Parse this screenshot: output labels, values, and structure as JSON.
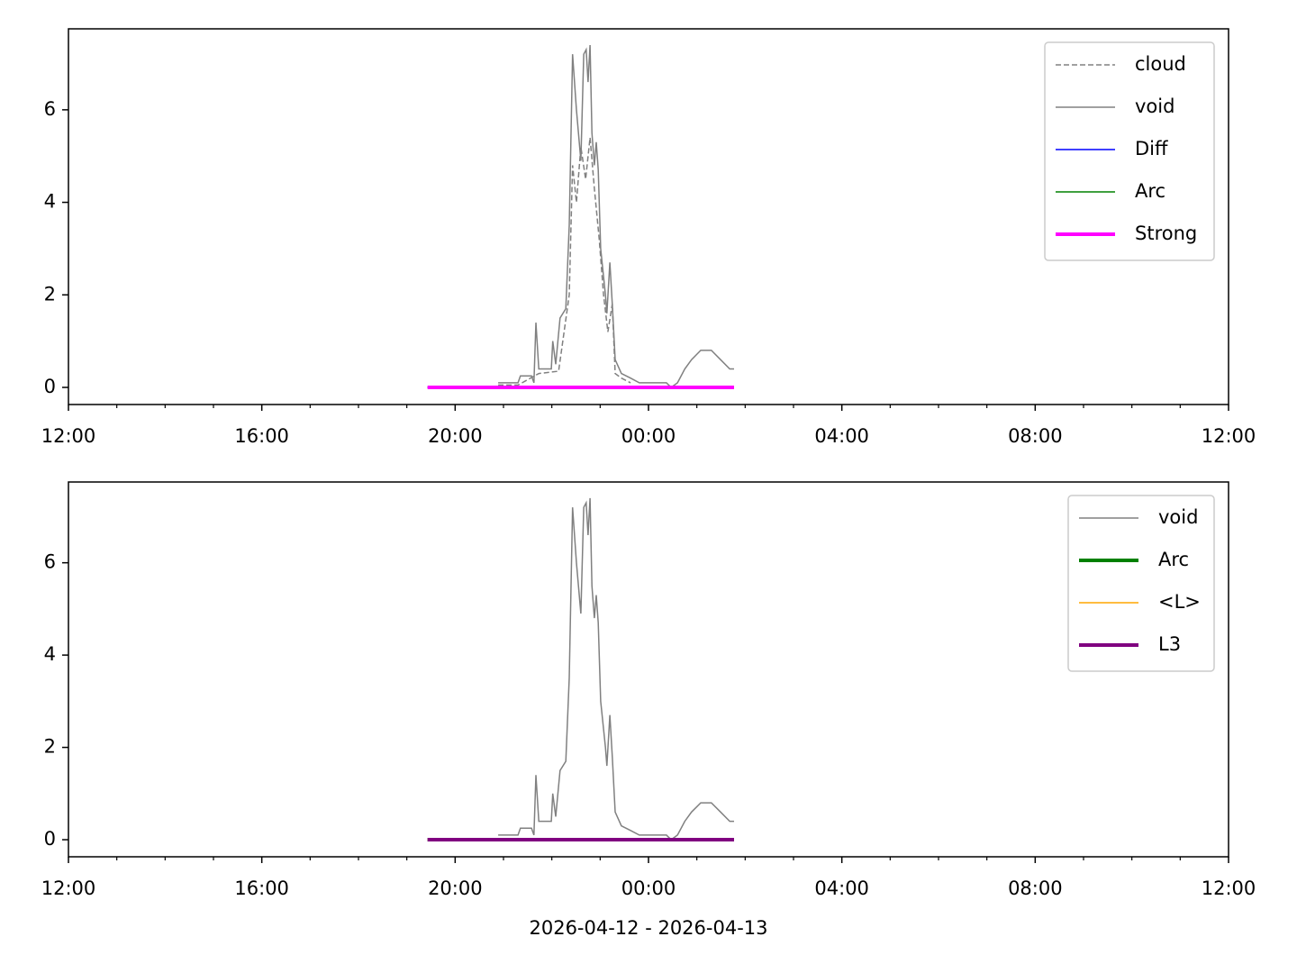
{
  "chart_data": [
    {
      "type": "line",
      "xlim": [
        12,
        36
      ],
      "xticks": [
        {
          "value": 12,
          "label": "12:00"
        },
        {
          "value": 16,
          "label": "16:00"
        },
        {
          "value": 20,
          "label": "20:00"
        },
        {
          "value": 24,
          "label": "00:00"
        },
        {
          "value": 28,
          "label": "04:00"
        },
        {
          "value": 32,
          "label": "08:00"
        },
        {
          "value": 36,
          "label": "12:00"
        }
      ],
      "xminorticks": [
        13,
        14,
        15,
        17,
        18,
        19,
        21,
        22,
        23,
        25,
        26,
        27,
        29,
        30,
        31,
        33,
        34,
        35
      ],
      "ylim": [
        -0.37,
        7.75
      ],
      "yticks": [
        0,
        2,
        4,
        6
      ],
      "legend": "upper right",
      "series": [
        {
          "name": "cloud",
          "color": "#808080",
          "linestyle": "dashed",
          "linewidth": 1.5,
          "x": [
            20.89,
            21.3,
            21.73,
            22.14,
            22.36,
            22.43,
            22.51,
            22.6,
            22.7,
            22.79,
            22.88,
            22.98,
            23.07,
            23.16,
            23.25,
            23.31,
            23.44,
            23.63
          ],
          "values": [
            0.05,
            0.05,
            0.3,
            0.35,
            2.0,
            4.8,
            4.0,
            5.2,
            4.5,
            5.4,
            4.3,
            3.2,
            2.0,
            1.2,
            1.8,
            0.3,
            0.2,
            0.1
          ]
        },
        {
          "name": "void",
          "color": "#808080",
          "linestyle": "solid",
          "linewidth": 1.5,
          "x": [
            20.89,
            21.3,
            21.35,
            21.58,
            21.63,
            21.67,
            21.73,
            21.99,
            22.02,
            22.08,
            22.17,
            22.29,
            22.36,
            22.43,
            22.51,
            22.6,
            22.66,
            22.71,
            22.75,
            22.79,
            22.83,
            22.88,
            22.92,
            22.96,
            23.01,
            23.11,
            23.14,
            23.2,
            23.25,
            23.31,
            23.44,
            23.63,
            23.81,
            24.37,
            24.47,
            24.6,
            24.75,
            24.89,
            25.08,
            25.3,
            25.49,
            25.68,
            25.77
          ],
          "values": [
            0.1,
            0.1,
            0.25,
            0.25,
            0.1,
            1.4,
            0.4,
            0.4,
            1.0,
            0.5,
            1.5,
            1.7,
            3.5,
            7.2,
            6.0,
            4.9,
            7.2,
            7.3,
            6.6,
            7.4,
            5.5,
            4.8,
            5.3,
            4.7,
            3.0,
            2.0,
            1.6,
            2.7,
            1.8,
            0.6,
            0.3,
            0.2,
            0.1,
            0.1,
            0.0,
            0.1,
            0.4,
            0.6,
            0.8,
            0.8,
            0.6,
            0.4,
            0.4
          ]
        },
        {
          "name": "Diff",
          "color": "#0000ff",
          "linestyle": "solid",
          "linewidth": 1.5,
          "x": [
            19.43,
            25.77
          ],
          "values": [
            0,
            0
          ]
        },
        {
          "name": "Arc",
          "color": "#008000",
          "linestyle": "solid",
          "linewidth": 1.5,
          "x": [
            19.43,
            25.77
          ],
          "values": [
            0,
            0
          ]
        },
        {
          "name": "Strong",
          "color": "#ff00ff",
          "linestyle": "solid",
          "linewidth": 4,
          "x": [
            19.43,
            25.77
          ],
          "values": [
            0,
            0
          ]
        }
      ]
    },
    {
      "type": "line",
      "xlabel": "2026-04-12 - 2026-04-13",
      "xlim": [
        12,
        36
      ],
      "xticks": [
        {
          "value": 12,
          "label": "12:00"
        },
        {
          "value": 16,
          "label": "16:00"
        },
        {
          "value": 20,
          "label": "20:00"
        },
        {
          "value": 24,
          "label": "00:00"
        },
        {
          "value": 28,
          "label": "04:00"
        },
        {
          "value": 32,
          "label": "08:00"
        },
        {
          "value": 36,
          "label": "12:00"
        }
      ],
      "xminorticks": [
        13,
        14,
        15,
        17,
        18,
        19,
        21,
        22,
        23,
        25,
        26,
        27,
        29,
        30,
        31,
        33,
        34,
        35
      ],
      "ylim": [
        -0.37,
        7.75
      ],
      "yticks": [
        0,
        2,
        4,
        6
      ],
      "legend": "upper right",
      "series": [
        {
          "name": "void",
          "color": "#808080",
          "linestyle": "solid",
          "linewidth": 1.5,
          "x": [
            20.89,
            21.3,
            21.35,
            21.58,
            21.63,
            21.67,
            21.73,
            21.99,
            22.02,
            22.08,
            22.17,
            22.29,
            22.36,
            22.43,
            22.51,
            22.6,
            22.66,
            22.71,
            22.75,
            22.79,
            22.83,
            22.88,
            22.92,
            22.96,
            23.01,
            23.11,
            23.14,
            23.2,
            23.25,
            23.31,
            23.44,
            23.63,
            23.81,
            24.37,
            24.47,
            24.6,
            24.75,
            24.89,
            25.08,
            25.3,
            25.49,
            25.68,
            25.77
          ],
          "values": [
            0.1,
            0.1,
            0.25,
            0.25,
            0.1,
            1.4,
            0.4,
            0.4,
            1.0,
            0.5,
            1.5,
            1.7,
            3.5,
            7.2,
            6.0,
            4.9,
            7.2,
            7.3,
            6.6,
            7.4,
            5.5,
            4.8,
            5.3,
            4.7,
            3.0,
            2.0,
            1.6,
            2.7,
            1.8,
            0.6,
            0.3,
            0.2,
            0.1,
            0.1,
            0.0,
            0.1,
            0.4,
            0.6,
            0.8,
            0.8,
            0.6,
            0.4,
            0.4
          ]
        },
        {
          "name": "Arc",
          "color": "#008000",
          "linestyle": "solid",
          "linewidth": 4,
          "x": [
            19.43,
            25.77
          ],
          "values": [
            0,
            0
          ]
        },
        {
          "name": "<L>",
          "color": "#ffa500",
          "linestyle": "solid",
          "linewidth": 1.5,
          "x": [
            19.43,
            25.77
          ],
          "values": [
            0,
            0
          ]
        },
        {
          "name": "L3",
          "color": "#800080",
          "linestyle": "solid",
          "linewidth": 4,
          "x": [
            19.43,
            25.77
          ],
          "values": [
            0,
            0
          ]
        }
      ]
    }
  ]
}
